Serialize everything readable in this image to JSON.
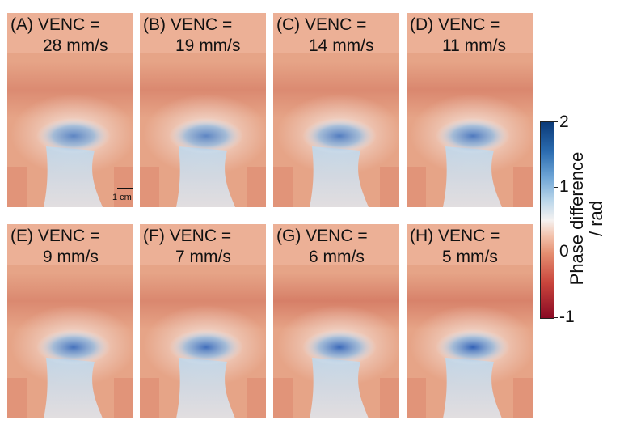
{
  "panels": [
    {
      "letter": "(A) VENC =",
      "venc": "28 mm/s",
      "intensity": 0.55,
      "darkband": 0.35
    },
    {
      "letter": "(B) VENC =",
      "venc": "19 mm/s",
      "intensity": 0.55,
      "darkband": 0.4
    },
    {
      "letter": "(C) VENC =",
      "venc": "14 mm/s",
      "intensity": 0.65,
      "darkband": 0.35
    },
    {
      "letter": "(D) VENC =",
      "venc": "11 mm/s",
      "intensity": 0.7,
      "darkband": 0.45
    },
    {
      "letter": "(E) VENC =",
      "venc": "9 mm/s",
      "intensity": 0.8,
      "darkband": 0.4
    },
    {
      "letter": "(F) VENC =",
      "venc": "7 mm/s",
      "intensity": 0.85,
      "darkband": 0.45
    },
    {
      "letter": "(G) VENC =",
      "venc": "6 mm/s",
      "intensity": 0.9,
      "darkband": 0.7
    },
    {
      "letter": "(H) VENC =",
      "venc": "5 mm/s",
      "intensity": 1.0,
      "darkband": 0.6
    }
  ],
  "scalebar": {
    "label": "1 cm"
  },
  "colorbar": {
    "title_line1": "Phase difference",
    "title_line2": "/ rad",
    "ticks": [
      "2",
      "1",
      "0",
      "-1"
    ],
    "range": [
      -1,
      2
    ]
  }
}
